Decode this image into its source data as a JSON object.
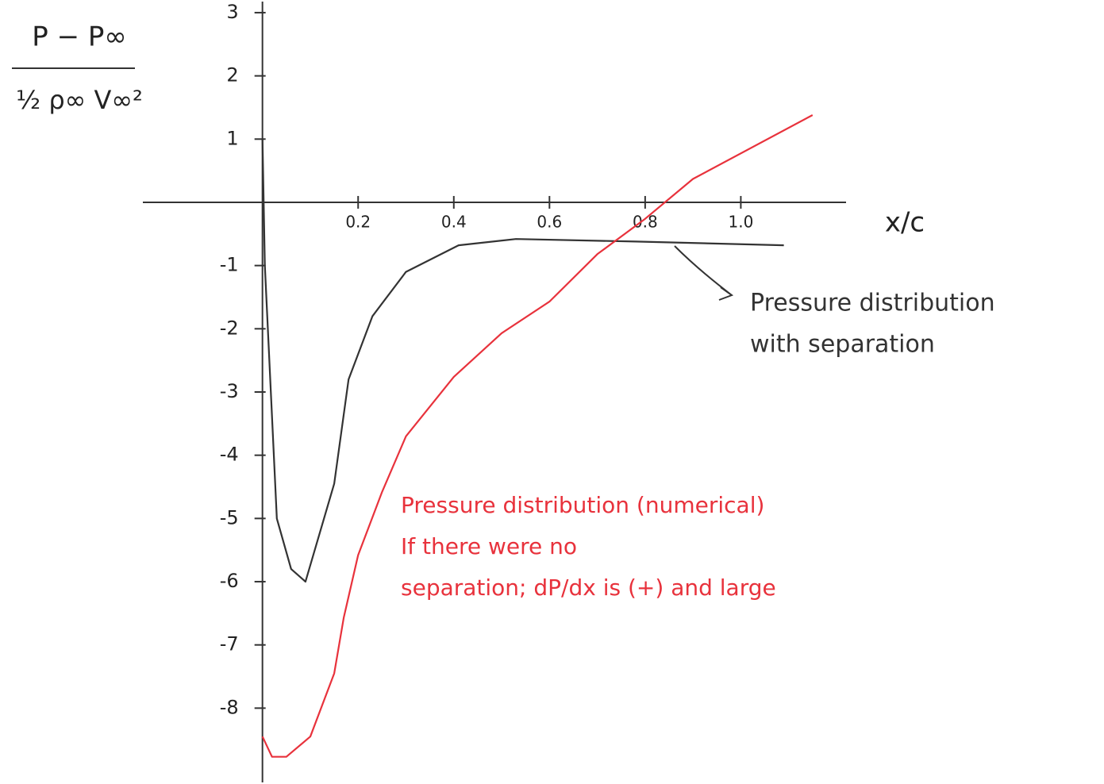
{
  "chart_data": {
    "type": "line",
    "ylabel": {
      "numerator": "P − P∞",
      "denominator": "½ ρ∞ V∞²"
    },
    "xlabel": "x/c",
    "xlim": [
      -0.25,
      1.22
    ],
    "ylim": [
      -9.2,
      3.2
    ],
    "xticks": [
      0.2,
      0.4,
      0.6,
      0.8,
      {
        "value": 1,
        "label": "1.0"
      }
    ],
    "yticks": [
      3,
      2,
      1,
      -1,
      -2,
      -3,
      -4,
      -5,
      -6,
      -7,
      -8
    ],
    "series": [
      {
        "color": "#333333",
        "x": [
          0,
          0.005,
          0.03,
          0.06,
          0.09,
          0.15,
          0.18,
          0.23,
          0.3,
          0.41,
          0.53,
          0.78,
          1.09
        ],
        "values": [
          1,
          -1,
          -5,
          -5.8,
          -6,
          -4.45,
          -2.8,
          -1.8,
          -1.1,
          -0.68,
          -0.58,
          -0.62,
          -0.68
        ]
      },
      {
        "color": "#e8323c",
        "x": [
          0,
          0.02,
          0.05,
          0.1,
          0.15,
          0.17,
          0.2,
          0.25,
          0.3,
          0.4,
          0.5,
          0.6,
          0.7,
          0.8,
          0.9,
          1.15
        ],
        "values": [
          -8.45,
          -8.77,
          -8.77,
          -8.45,
          -7.45,
          -6.57,
          -5.58,
          -4.58,
          -3.7,
          -2.76,
          -2.07,
          -1.57,
          -0.82,
          -0.26,
          0.37,
          1.38
        ]
      }
    ],
    "annotations": [
      {
        "color": "#333333",
        "lines": [
          "Pressure distribution",
          "with separation"
        ]
      },
      {
        "color": "#e8323c",
        "lines": [
          "Pressure distribution (numerical)",
          "If there were no",
          "separation; dP/dx is (+) and large"
        ]
      }
    ]
  }
}
